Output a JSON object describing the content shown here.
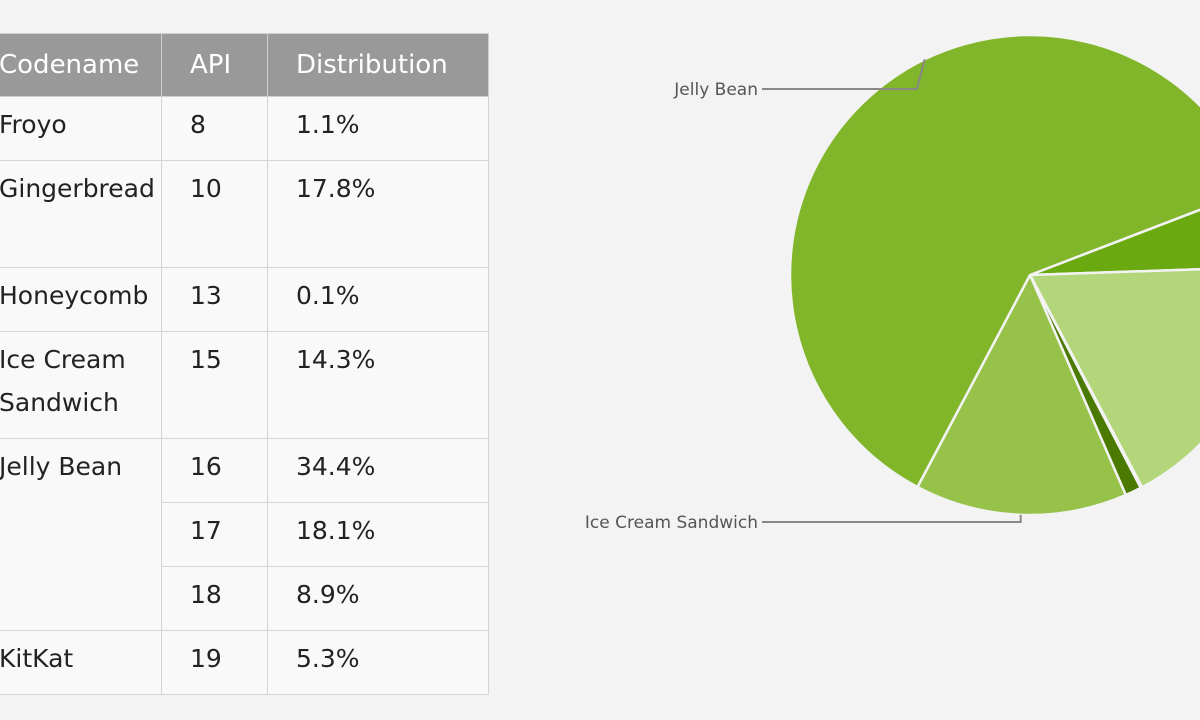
{
  "table": {
    "headers": [
      "Codename",
      "API",
      "Distribution"
    ],
    "rows": [
      {
        "codename": "Froyo",
        "api": "8",
        "distribution": "1.1%"
      },
      {
        "codename": "Gingerbread",
        "api": "10",
        "distribution": "17.8%"
      },
      {
        "codename": "Honeycomb",
        "api": "13",
        "distribution": "0.1%"
      },
      {
        "codename": "Ice Cream Sandwich",
        "api": "15",
        "distribution": "14.3%"
      },
      {
        "codename": "Jelly Bean",
        "api": "16",
        "distribution": "34.4%"
      },
      {
        "codename": "",
        "api": "17",
        "distribution": "18.1%"
      },
      {
        "codename": "",
        "api": "18",
        "distribution": "8.9%"
      },
      {
        "codename": "KitKat",
        "api": "19",
        "distribution": "5.3%"
      }
    ]
  },
  "chart_data": {
    "type": "pie",
    "slices": [
      {
        "name": "Froyo",
        "value": 1.1,
        "color": "#4b7a00"
      },
      {
        "name": "Gingerbread",
        "value": 17.8,
        "color": "#b3d67b"
      },
      {
        "name": "Honeycomb",
        "value": 0.1,
        "color": "#dfeec4"
      },
      {
        "name": "Ice Cream Sandwich",
        "value": 14.3,
        "color": "#96c24a"
      },
      {
        "name": "Jelly Bean",
        "value": 61.4,
        "color": "#81b52a"
      },
      {
        "name": "KitKat",
        "value": 5.3,
        "color": "#6aaa10"
      }
    ],
    "visible_labels": [
      "Jelly Bean",
      "Ice Cream Sandwich"
    ],
    "slice_border_color": "#f3f3f3",
    "leader_line_color": "#888888"
  }
}
